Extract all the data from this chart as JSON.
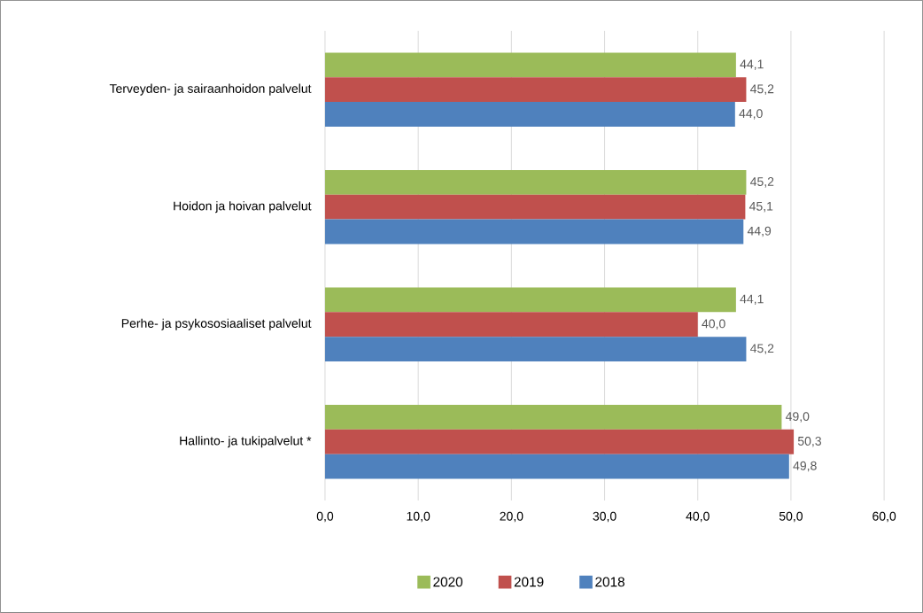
{
  "chart_data": {
    "type": "bar",
    "orientation": "horizontal",
    "categories": [
      "Terveyden- ja sairaanhoidon palvelut",
      "Hoidon ja hoivan palvelut",
      "Perhe- ja psykososiaaliset palvelut",
      "Hallinto- ja tukipalvelut *"
    ],
    "series": [
      {
        "name": "2020",
        "color": "#9bbb59",
        "values": [
          44.1,
          45.2,
          44.1,
          49.0
        ],
        "value_labels": [
          "44,1",
          "45,2",
          "44,1",
          "49,0"
        ]
      },
      {
        "name": "2019",
        "color": "#c0504d",
        "values": [
          45.2,
          45.1,
          40.0,
          50.3
        ],
        "value_labels": [
          "45,2",
          "45,1",
          "40,0",
          "50,3"
        ]
      },
      {
        "name": "2018",
        "color": "#4f81bd",
        "values": [
          44.0,
          44.9,
          45.2,
          49.8
        ],
        "value_labels": [
          "44,0",
          "44,9",
          "45,2",
          "49,8"
        ]
      }
    ],
    "xlim": [
      0,
      60
    ],
    "xticks": [
      {
        "value": 0,
        "label": "0,0"
      },
      {
        "value": 10,
        "label": "10,0"
      },
      {
        "value": 20,
        "label": "20,0"
      },
      {
        "value": 30,
        "label": "30,0"
      },
      {
        "value": 40,
        "label": "40,0"
      },
      {
        "value": 50,
        "label": "50,0"
      },
      {
        "value": 60,
        "label": "60,0"
      }
    ],
    "grid": "x",
    "legend": "bottom"
  }
}
